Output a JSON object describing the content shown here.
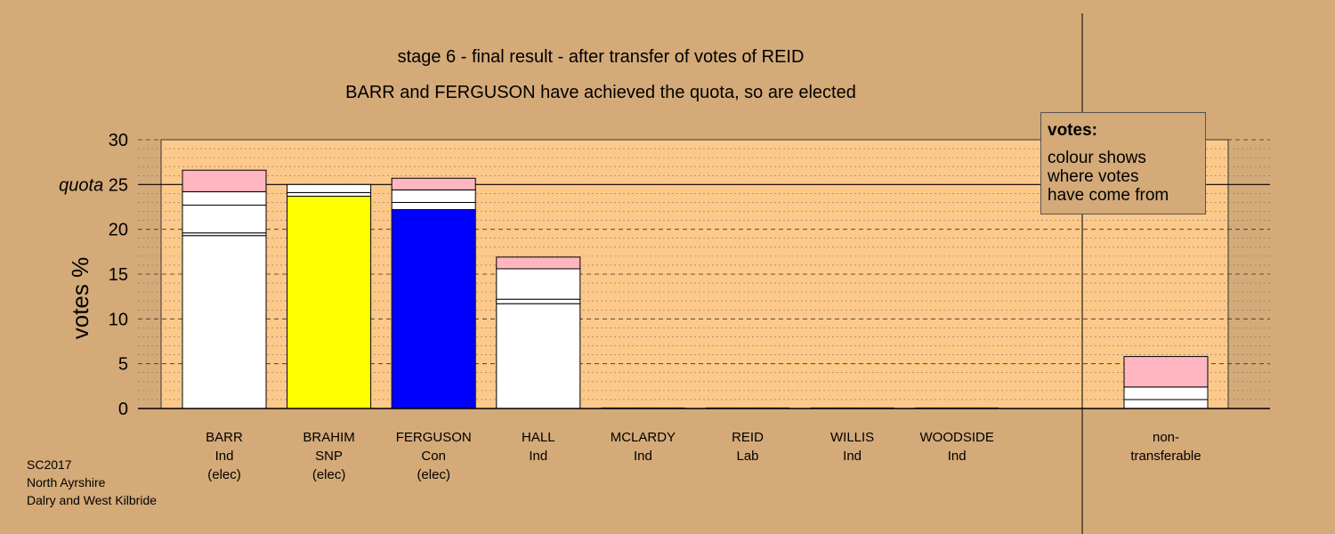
{
  "title": "stage 6 - final result - after transfer of votes of REID",
  "subtitle": "BARR and FERGUSON have achieved the quota, so are elected",
  "legend": {
    "title": "votes:",
    "text": "colour shows\nwhere votes\nhave come from"
  },
  "footer": [
    "SC2017",
    "North Ayrshire",
    "Dalry and West Kilbride"
  ],
  "colors": {
    "background": "#d4aa78",
    "plot_area": "#fdc98a",
    "BARR": "#ffffff",
    "BRAHIM": "#ffff00",
    "FERGUSON": "#0000ff",
    "HALL": "#ffffff",
    "MCLARDY": "#ffffff",
    "WILLIS": "#ffffff",
    "WOODSIDE": "#ffffff",
    "REID": "#ffb6c1"
  },
  "chart_data": {
    "type": "bar",
    "stacked": true,
    "ylabel": "votes %",
    "ylim": [
      0,
      30
    ],
    "yticks": [
      0,
      5,
      10,
      15,
      20,
      25,
      30
    ],
    "quota": 25,
    "quota_label": "quota",
    "grid": true,
    "candidates": [
      {
        "name": "BARR",
        "party": "Ind",
        "status": "(elec)",
        "segments": [
          {
            "from": "BARR",
            "value": 19.3
          },
          {
            "from": "MCLARDY",
            "value": 0.3
          },
          {
            "from": "WOODSIDE",
            "value": 3.1
          },
          {
            "from": "WILLIS",
            "value": 1.5
          },
          {
            "from": "REID",
            "value": 2.4
          }
        ]
      },
      {
        "name": "BRAHIM",
        "party": "SNP",
        "status": "(elec)",
        "segments": [
          {
            "from": "BRAHIM",
            "value": 23.7
          },
          {
            "from": "WOODSIDE",
            "value": 0.4
          },
          {
            "from": "WILLIS",
            "value": 0.9
          }
        ]
      },
      {
        "name": "FERGUSON",
        "party": "Con",
        "status": "(elec)",
        "segments": [
          {
            "from": "FERGUSON",
            "value": 22.2
          },
          {
            "from": "WOODSIDE",
            "value": 0.8
          },
          {
            "from": "WILLIS",
            "value": 1.4
          },
          {
            "from": "REID",
            "value": 1.3
          }
        ]
      },
      {
        "name": "HALL",
        "party": "Ind",
        "status": "",
        "segments": [
          {
            "from": "HALL",
            "value": 11.7
          },
          {
            "from": "MCLARDY",
            "value": 0.5
          },
          {
            "from": "WOODSIDE",
            "value": 3.4
          },
          {
            "from": "REID",
            "value": 1.3
          }
        ]
      },
      {
        "name": "MCLARDY",
        "party": "Ind",
        "status": "",
        "segments": []
      },
      {
        "name": "REID",
        "party": "Lab",
        "status": "",
        "segments": []
      },
      {
        "name": "WILLIS",
        "party": "Ind",
        "status": "",
        "segments": []
      },
      {
        "name": "WOODSIDE",
        "party": "Ind",
        "status": "",
        "segments": []
      }
    ],
    "non_transferable": {
      "label_line1": "non-",
      "label_line2": "transferable",
      "segments": [
        {
          "from": "WOODSIDE",
          "value": 1.0
        },
        {
          "from": "WILLIS",
          "value": 1.4
        },
        {
          "from": "REID",
          "value": 3.4
        }
      ]
    }
  }
}
